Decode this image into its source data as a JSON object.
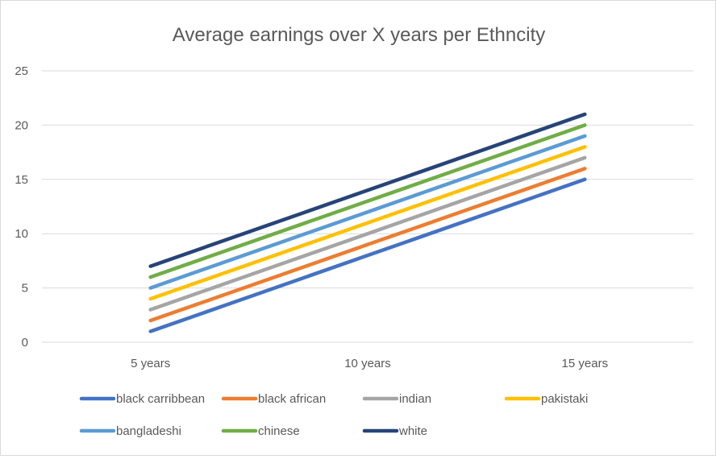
{
  "chart_data": {
    "type": "line",
    "title": "Average earnings over X years per Ethncity",
    "xlabel": "",
    "ylabel": "",
    "categories": [
      "5 years",
      "10 years",
      "15 years"
    ],
    "ylim": [
      0,
      25
    ],
    "yticks": [
      0,
      5,
      10,
      15,
      20,
      25
    ],
    "grid": true,
    "legend_position": "bottom",
    "series": [
      {
        "name": "black carribbean",
        "color": "#4472c4",
        "values": [
          1,
          8,
          15
        ]
      },
      {
        "name": "black african",
        "color": "#ed7d31",
        "values": [
          2,
          9,
          16
        ]
      },
      {
        "name": "indian",
        "color": "#a5a5a5",
        "values": [
          3,
          10,
          17
        ]
      },
      {
        "name": "pakistaki",
        "color": "#ffc000",
        "values": [
          4,
          11,
          18
        ]
      },
      {
        "name": "bangladeshi",
        "color": "#5b9bd5",
        "values": [
          5,
          12,
          19
        ]
      },
      {
        "name": "chinese",
        "color": "#70ad47",
        "values": [
          6,
          13,
          20
        ]
      },
      {
        "name": "white",
        "color": "#264478",
        "values": [
          7,
          14,
          21
        ]
      }
    ]
  }
}
